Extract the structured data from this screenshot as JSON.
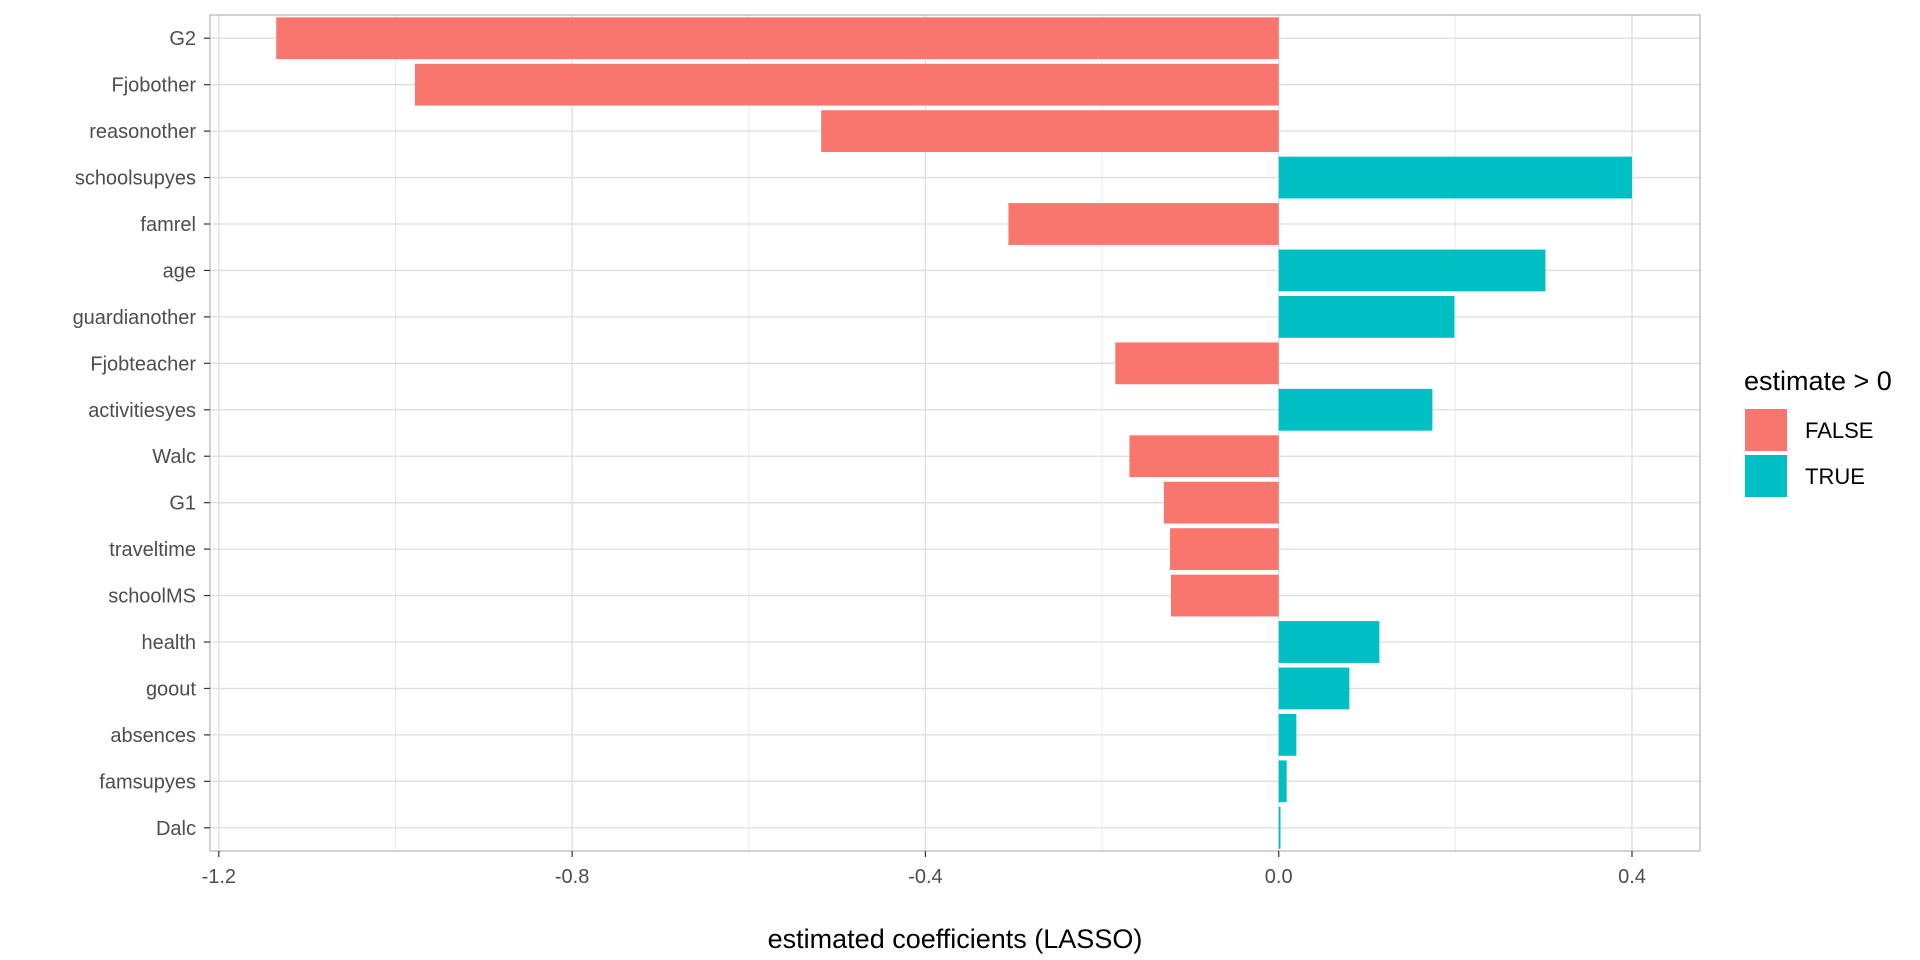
{
  "chart_data": {
    "type": "bar",
    "orientation": "horizontal",
    "xlabel": "estimated coefficients (LASSO)",
    "ylabel": "",
    "xlim": [
      -1.21,
      0.477
    ],
    "x_ticks": [
      -1.2,
      -0.8,
      -0.4,
      0.0,
      0.4
    ],
    "x_tick_labels": [
      "-1.2",
      "-0.8",
      "-0.4",
      "0.0",
      "0.4"
    ],
    "grid": true,
    "categories": [
      "G2",
      "Fjobother",
      "reasonother",
      "schoolsupyes",
      "famrel",
      "age",
      "guardianother",
      "Fjobteacher",
      "activitiesyes",
      "Walc",
      "G1",
      "traveltime",
      "schoolMS",
      "health",
      "goout",
      "absences",
      "famsupyes",
      "Dalc"
    ],
    "values": [
      -1.135,
      -0.978,
      -0.518,
      0.4,
      -0.306,
      0.302,
      0.199,
      -0.185,
      0.174,
      -0.169,
      -0.13,
      -0.123,
      -0.122,
      0.114,
      0.08,
      0.02,
      0.009,
      0.002
    ],
    "fill_rule": "estimate > 0",
    "legend": {
      "title": "estimate > 0",
      "position": "right",
      "entries": [
        {
          "label": "FALSE",
          "color": "#f8766d"
        },
        {
          "label": "TRUE",
          "color": "#00bfc4"
        }
      ]
    },
    "colors": {
      "FALSE": "#f8766d",
      "TRUE": "#00bfc4"
    }
  }
}
